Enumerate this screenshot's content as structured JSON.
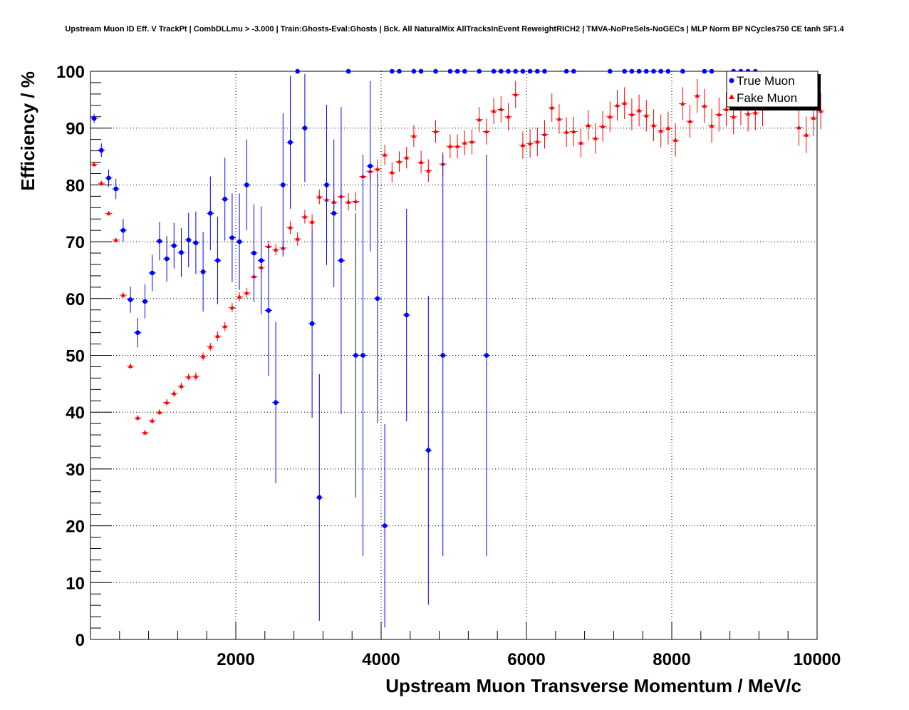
{
  "chart_data": {
    "type": "scatter",
    "title": "Upstream Muon ID Eff. V TrackPt | CombDLLmu > -3.000 | Train:Ghosts-Eval:Ghosts | Bck. All NaturalMix AllTracksInEvent ReweightRICH2 | TMVA-NoPreSels-NoGECs | MLP Norm BP NCycles750 CE tanh SF1.4",
    "xlabel": "Upstream Muon Transverse Momentum / MeV/c",
    "ylabel": "Efficiency / %",
    "xlim": [
      0,
      10000
    ],
    "ylim": [
      0,
      100
    ],
    "xticks": [
      2000,
      4000,
      6000,
      8000,
      10000
    ],
    "yticks": [
      0,
      10,
      20,
      30,
      40,
      50,
      60,
      70,
      80,
      90,
      100
    ],
    "xtick_labels": [
      "2000",
      "4000",
      "6000",
      "8000",
      "10000"
    ],
    "ytick_labels": [
      "0",
      "10",
      "20",
      "30",
      "40",
      "50",
      "60",
      "70",
      "80",
      "90",
      "100"
    ],
    "grid": true,
    "legend_position": "top-right",
    "series": [
      {
        "name": "True Muon",
        "marker": "circle",
        "color": "#0000ff",
        "x": [
          0,
          100,
          200,
          300,
          400,
          500,
          600,
          700,
          800,
          900,
          1000,
          1100,
          1200,
          1300,
          1400,
          1500,
          1600,
          1700,
          1800,
          1900,
          2000,
          2100,
          2200,
          2300,
          2400,
          2500,
          2600,
          2700,
          2800,
          2900,
          3000,
          3100,
          3200,
          3300,
          3400,
          3500,
          3600,
          3700,
          3800,
          3900,
          4000,
          4100,
          4200,
          4300,
          4400,
          4500,
          4600,
          4700,
          4800,
          4900,
          5000,
          5100,
          5300,
          5400,
          5500,
          5600,
          5700,
          5800,
          5900,
          6000,
          6100,
          6200,
          6500,
          6600,
          7100,
          7300,
          7400,
          7500,
          7600,
          7700,
          7800,
          7900,
          8100,
          8400,
          8500,
          8800,
          8900,
          9000,
          9100
        ],
        "y": [
          91.7,
          86.1,
          81.2,
          79.3,
          72.0,
          59.8,
          54.0,
          59.5,
          64.5,
          70.1,
          67.0,
          69.3,
          68.1,
          70.3,
          69.8,
          64.7,
          75.0,
          66.7,
          77.5,
          70.7,
          70.0,
          80.0,
          68.0,
          66.7,
          57.9,
          41.7,
          80.0,
          87.5,
          100,
          90.0,
          55.6,
          25.0,
          80.0,
          75.0,
          66.7,
          100,
          50.0,
          50.0,
          83.3,
          60.0,
          20.0,
          100,
          100,
          57.1,
          100,
          100,
          33.3,
          100,
          50.0,
          100,
          100,
          100,
          100,
          50.0,
          100,
          100,
          100,
          100,
          100,
          100,
          100,
          100,
          100,
          100,
          100,
          100,
          100,
          100,
          100,
          100,
          100,
          100,
          100,
          100,
          100,
          100,
          100,
          100,
          100
        ],
        "yerr": [
          0.8,
          1.2,
          1.5,
          1.8,
          2.0,
          2.3,
          2.6,
          3.0,
          3.2,
          3.4,
          4.0,
          4.0,
          4.3,
          4.8,
          5.5,
          7.0,
          6.5,
          7.7,
          7.3,
          7.8,
          8.5,
          8.0,
          8.6,
          9.5,
          11.5,
          14.2,
          12.6,
          11.7,
          0,
          9.5,
          16.6,
          21.7,
          14.1,
          13.0,
          27.0,
          0,
          25.0,
          35.3,
          15.0,
          21.9,
          17.9,
          0,
          0,
          18.7,
          0,
          0,
          27.2,
          0,
          35.3,
          0,
          0,
          0,
          0,
          35.3,
          0,
          0,
          0,
          0,
          0,
          0,
          0,
          0,
          0,
          0,
          0,
          0,
          0,
          0,
          0,
          0,
          0,
          0,
          0,
          0,
          0,
          0,
          0,
          0,
          0
        ]
      },
      {
        "name": "Fake Muon",
        "marker": "triangle",
        "color": "#ff0000",
        "x": [
          0,
          100,
          200,
          300,
          400,
          500,
          600,
          700,
          800,
          900,
          1000,
          1100,
          1200,
          1300,
          1400,
          1500,
          1600,
          1700,
          1800,
          1900,
          2000,
          2100,
          2200,
          2300,
          2400,
          2500,
          2600,
          2700,
          2800,
          2900,
          3000,
          3100,
          3200,
          3300,
          3400,
          3500,
          3600,
          3700,
          3800,
          3900,
          4000,
          4100,
          4200,
          4300,
          4400,
          4500,
          4600,
          4700,
          4800,
          4900,
          5000,
          5100,
          5200,
          5300,
          5400,
          5500,
          5600,
          5700,
          5800,
          5900,
          6000,
          6100,
          6200,
          6300,
          6400,
          6500,
          6600,
          6700,
          6800,
          6900,
          7000,
          7100,
          7200,
          7300,
          7400,
          7500,
          7600,
          7700,
          7800,
          7900,
          8000,
          8100,
          8200,
          8300,
          8400,
          8500,
          8600,
          8700,
          8800,
          8900,
          9000,
          9100,
          9200,
          9700,
          9800,
          9900,
          10000
        ],
        "y": [
          83.6,
          80.3,
          75.0,
          70.3,
          60.6,
          48.1,
          39.0,
          36.4,
          38.5,
          40.0,
          41.7,
          43.3,
          44.6,
          46.2,
          46.3,
          49.8,
          51.5,
          53.4,
          55.1,
          58.4,
          60.3,
          61.0,
          63.9,
          65.5,
          69.2,
          68.6,
          68.9,
          72.5,
          70.5,
          74.4,
          73.5,
          77.9,
          77.4,
          77.0,
          78.0,
          77.0,
          77.1,
          81.5,
          82.4,
          82.8,
          85.3,
          82.2,
          84.1,
          84.8,
          88.6,
          84.0,
          82.5,
          89.4,
          83.7,
          86.8,
          86.8,
          87.4,
          87.6,
          91.5,
          89.4,
          93.0,
          93.3,
          92.0,
          95.9,
          87.0,
          87.3,
          87.6,
          88.9,
          93.6,
          91.6,
          89.3,
          89.4,
          87.4,
          90.5,
          88.2,
          90.3,
          92.0,
          94.0,
          94.4,
          92.4,
          93.1,
          92.2,
          90.5,
          89.5,
          90.0,
          87.9,
          94.3,
          91.2,
          95.7,
          93.9,
          90.4,
          92.4,
          93.3,
          92.0,
          93.6,
          92.5,
          92.7,
          93.4,
          90.1,
          88.8,
          91.8,
          93.0
        ],
        "yerr": [
          0.3,
          0.4,
          0.4,
          0.4,
          0.5,
          0.5,
          0.5,
          0.5,
          0.5,
          0.5,
          0.6,
          0.6,
          0.6,
          0.6,
          0.7,
          0.7,
          0.7,
          0.8,
          0.8,
          0.8,
          0.8,
          0.9,
          0.9,
          1.0,
          1.0,
          1.0,
          1.1,
          1.1,
          1.2,
          1.2,
          1.3,
          1.3,
          1.4,
          1.4,
          1.5,
          1.5,
          1.6,
          1.6,
          1.7,
          1.7,
          1.8,
          1.8,
          1.8,
          1.9,
          1.9,
          2.0,
          2.0,
          2.0,
          2.1,
          2.1,
          2.1,
          2.2,
          2.2,
          2.2,
          2.3,
          2.3,
          2.3,
          2.4,
          2.4,
          2.4,
          2.5,
          2.5,
          2.5,
          2.5,
          2.6,
          2.6,
          2.6,
          2.6,
          2.7,
          2.7,
          2.7,
          2.7,
          2.7,
          2.8,
          2.8,
          2.8,
          2.8,
          2.8,
          2.9,
          2.9,
          2.9,
          2.9,
          2.9,
          3.0,
          3.0,
          3.0,
          3.0,
          3.0,
          3.1,
          3.1,
          3.1,
          3.1,
          3.1,
          3.2,
          3.2,
          3.2,
          3.2
        ]
      }
    ]
  }
}
